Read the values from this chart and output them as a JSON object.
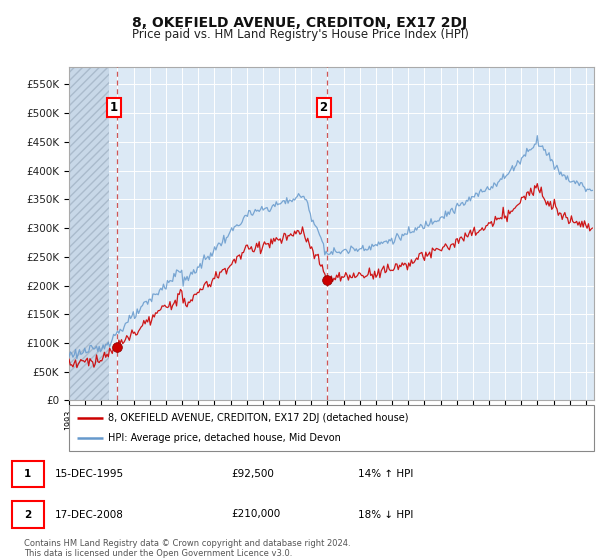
{
  "title": "8, OKEFIELD AVENUE, CREDITON, EX17 2DJ",
  "subtitle": "Price paid vs. HM Land Registry's House Price Index (HPI)",
  "ylim": [
    0,
    580000
  ],
  "yticks": [
    0,
    50000,
    100000,
    150000,
    200000,
    250000,
    300000,
    350000,
    400000,
    450000,
    500000,
    550000
  ],
  "ytick_labels": [
    "£0",
    "£50K",
    "£100K",
    "£150K",
    "£200K",
    "£250K",
    "£300K",
    "£350K",
    "£400K",
    "£450K",
    "£500K",
    "£550K"
  ],
  "background_color": "#ffffff",
  "plot_bg_color": "#dce9f5",
  "hatch_bg_color": "#c8d8e8",
  "grid_color": "#ffffff",
  "sale1_date": 1995.96,
  "sale1_price": 92500,
  "sale1_label": "1",
  "sale2_date": 2008.96,
  "sale2_price": 210000,
  "sale2_label": "2",
  "vline_color": "#cc4444",
  "legend_line1": "8, OKEFIELD AVENUE, CREDITON, EX17 2DJ (detached house)",
  "legend_line2": "HPI: Average price, detached house, Mid Devon",
  "table_row1": [
    "1",
    "15-DEC-1995",
    "£92,500",
    "14% ↑ HPI"
  ],
  "table_row2": [
    "2",
    "17-DEC-2008",
    "£210,000",
    "18% ↓ HPI"
  ],
  "footer": "Contains HM Land Registry data © Crown copyright and database right 2024.\nThis data is licensed under the Open Government Licence v3.0.",
  "hpi_color": "#6699cc",
  "price_color": "#cc0000",
  "marker_color": "#cc0000",
  "title_fontsize": 10,
  "subtitle_fontsize": 8.5,
  "tick_fontsize": 7.5,
  "xstart": 1993.0,
  "xend": 2025.5
}
